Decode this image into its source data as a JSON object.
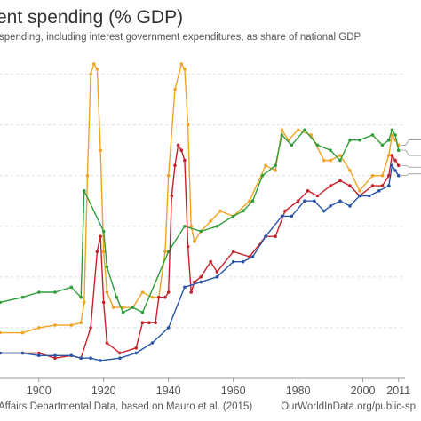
{
  "title_text": "ent spending (% GDP)",
  "subtitle_text": "spending, including interest government expenditures, as share of national GDP",
  "footer": {
    "source": "Affairs Departmental Data, based on Mauro et al. (2015)",
    "url": "OurWorldInData.org/public-sp"
  },
  "colors": {
    "orange": "#f0a323",
    "green": "#2e9e3a",
    "red": "#c8202a",
    "blue": "#2a55a8",
    "grid": "#dddddd",
    "connector": "#999999"
  },
  "chart_data": {
    "type": "line",
    "title": "",
    "xlabel": "",
    "ylabel": "",
    "xlim": [
      1888,
      2013
    ],
    "ylim": [
      0,
      65
    ],
    "x_ticks": [
      1900,
      1920,
      1940,
      1960,
      1980,
      2000,
      2011
    ],
    "y_gridlines": [
      10,
      20,
      30,
      40,
      50,
      60
    ],
    "grid": true,
    "series": [
      {
        "color": "#f0a323",
        "points": [
          [
            1888,
            9
          ],
          [
            1895,
            9
          ],
          [
            1900,
            10
          ],
          [
            1905,
            10.5
          ],
          [
            1910,
            10.5
          ],
          [
            1913,
            11
          ],
          [
            1914,
            15
          ],
          [
            1915,
            40
          ],
          [
            1916,
            60
          ],
          [
            1917,
            62
          ],
          [
            1918,
            61
          ],
          [
            1919,
            45
          ],
          [
            1920,
            25
          ],
          [
            1921,
            17
          ],
          [
            1923,
            14
          ],
          [
            1926,
            14
          ],
          [
            1929,
            14
          ],
          [
            1932,
            17
          ],
          [
            1935,
            16
          ],
          [
            1937,
            16
          ],
          [
            1939,
            25
          ],
          [
            1940,
            40
          ],
          [
            1942,
            57
          ],
          [
            1944,
            62
          ],
          [
            1945,
            61
          ],
          [
            1946,
            50
          ],
          [
            1947,
            30
          ],
          [
            1948,
            27
          ],
          [
            1950,
            29
          ],
          [
            1953,
            31
          ],
          [
            1956,
            33
          ],
          [
            1960,
            32
          ],
          [
            1965,
            35
          ],
          [
            1970,
            42
          ],
          [
            1973,
            41
          ],
          [
            1975,
            49
          ],
          [
            1977,
            47
          ],
          [
            1980,
            49
          ],
          [
            1984,
            48
          ],
          [
            1988,
            43
          ],
          [
            1990,
            43
          ],
          [
            1993,
            44
          ],
          [
            1996,
            41
          ],
          [
            1999,
            37
          ],
          [
            2003,
            40
          ],
          [
            2006,
            40
          ],
          [
            2008,
            44
          ],
          [
            2009,
            48
          ],
          [
            2010,
            47
          ],
          [
            2011,
            46
          ]
        ]
      },
      {
        "color": "#2e9e3a",
        "points": [
          [
            1888,
            15
          ],
          [
            1895,
            16
          ],
          [
            1900,
            17
          ],
          [
            1905,
            17
          ],
          [
            1910,
            18
          ],
          [
            1913,
            16
          ],
          [
            1914,
            37
          ],
          [
            1920,
            29
          ],
          [
            1921,
            22
          ],
          [
            1924,
            16
          ],
          [
            1926,
            13
          ],
          [
            1929,
            14
          ],
          [
            1932,
            13
          ],
          [
            1940,
            25
          ],
          [
            1945,
            30
          ],
          [
            1950,
            29
          ],
          [
            1955,
            30
          ],
          [
            1960,
            32
          ],
          [
            1963,
            33
          ],
          [
            1966,
            35
          ],
          [
            1969,
            40
          ],
          [
            1973,
            42
          ],
          [
            1975,
            48
          ],
          [
            1978,
            46
          ],
          [
            1982,
            49
          ],
          [
            1986,
            46
          ],
          [
            1990,
            45
          ],
          [
            1993,
            43
          ],
          [
            1996,
            47
          ],
          [
            1999,
            47
          ],
          [
            2003,
            48
          ],
          [
            2006,
            46
          ],
          [
            2008,
            47
          ],
          [
            2009,
            49
          ],
          [
            2010,
            48
          ],
          [
            2011,
            45
          ]
        ]
      },
      {
        "color": "#c8202a",
        "points": [
          [
            1888,
            5
          ],
          [
            1895,
            5
          ],
          [
            1900,
            5
          ],
          [
            1905,
            4
          ],
          [
            1910,
            4.5
          ],
          [
            1913,
            4
          ],
          [
            1916,
            10
          ],
          [
            1918,
            25
          ],
          [
            1919,
            28
          ],
          [
            1920,
            15
          ],
          [
            1921,
            7
          ],
          [
            1925,
            5
          ],
          [
            1930,
            6
          ],
          [
            1932,
            11
          ],
          [
            1934,
            11
          ],
          [
            1936,
            11
          ],
          [
            1937,
            16
          ],
          [
            1939,
            16
          ],
          [
            1940,
            17
          ],
          [
            1941,
            36
          ],
          [
            1942,
            42
          ],
          [
            1943,
            46
          ],
          [
            1944,
            45
          ],
          [
            1945,
            43
          ],
          [
            1946,
            26
          ],
          [
            1947,
            17
          ],
          [
            1948,
            19
          ],
          [
            1950,
            20
          ],
          [
            1953,
            23
          ],
          [
            1955,
            21
          ],
          [
            1960,
            25
          ],
          [
            1965,
            24
          ],
          [
            1970,
            28
          ],
          [
            1973,
            28
          ],
          [
            1976,
            33
          ],
          [
            1980,
            35
          ],
          [
            1983,
            37
          ],
          [
            1986,
            36
          ],
          [
            1990,
            38
          ],
          [
            1993,
            39
          ],
          [
            1996,
            38
          ],
          [
            1999,
            36
          ],
          [
            2003,
            38
          ],
          [
            2006,
            38
          ],
          [
            2008,
            40
          ],
          [
            2009,
            44
          ],
          [
            2010,
            43
          ],
          [
            2011,
            42
          ]
        ]
      },
      {
        "color": "#2a55a8",
        "points": [
          [
            1888,
            5
          ],
          [
            1895,
            5
          ],
          [
            1900,
            4.5
          ],
          [
            1905,
            4.5
          ],
          [
            1910,
            4.5
          ],
          [
            1913,
            4
          ],
          [
            1916,
            4
          ],
          [
            1919,
            3.5
          ],
          [
            1925,
            4
          ],
          [
            1930,
            5
          ],
          [
            1935,
            7
          ],
          [
            1940,
            10
          ],
          [
            1945,
            18
          ],
          [
            1950,
            19
          ],
          [
            1955,
            20
          ],
          [
            1960,
            23
          ],
          [
            1963,
            23
          ],
          [
            1966,
            24
          ],
          [
            1970,
            28
          ],
          [
            1975,
            32
          ],
          [
            1978,
            32
          ],
          [
            1982,
            35
          ],
          [
            1985,
            35
          ],
          [
            1988,
            33
          ],
          [
            1990,
            34
          ],
          [
            1993,
            35
          ],
          [
            1996,
            34
          ],
          [
            1999,
            36
          ],
          [
            2002,
            36
          ],
          [
            2005,
            37
          ],
          [
            2008,
            38
          ],
          [
            2009,
            42
          ],
          [
            2010,
            41
          ],
          [
            2011,
            40
          ]
        ]
      }
    ]
  }
}
